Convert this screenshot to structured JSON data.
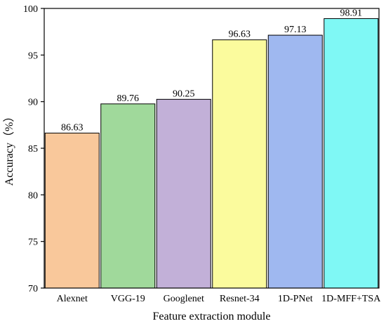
{
  "chart_data": {
    "type": "bar",
    "title": "",
    "xlabel": "Feature extraction module",
    "ylabel": "Accuracy（%）",
    "categories": [
      "Alexnet",
      "VGG-19",
      "Googlenet",
      "Resnet-34",
      "1D-PNet",
      "1D-MFF+TSA"
    ],
    "values": [
      86.63,
      89.76,
      90.25,
      96.63,
      97.13,
      98.91
    ],
    "value_labels": [
      "86.63",
      "89.76",
      "90.25",
      "96.63",
      "97.13",
      "98.91"
    ],
    "colors": [
      "#f9c89b",
      "#a0d99b",
      "#c2b0d8",
      "#fbfb9d",
      "#9fb8f0",
      "#7ff8f5"
    ],
    "ylim": [
      70,
      100
    ],
    "yticks": [
      70,
      75,
      80,
      85,
      90,
      95,
      100
    ],
    "ytick_labels": [
      "70",
      "75",
      "80",
      "85",
      "90",
      "95",
      "100"
    ],
    "grid": false,
    "legend": "none"
  }
}
